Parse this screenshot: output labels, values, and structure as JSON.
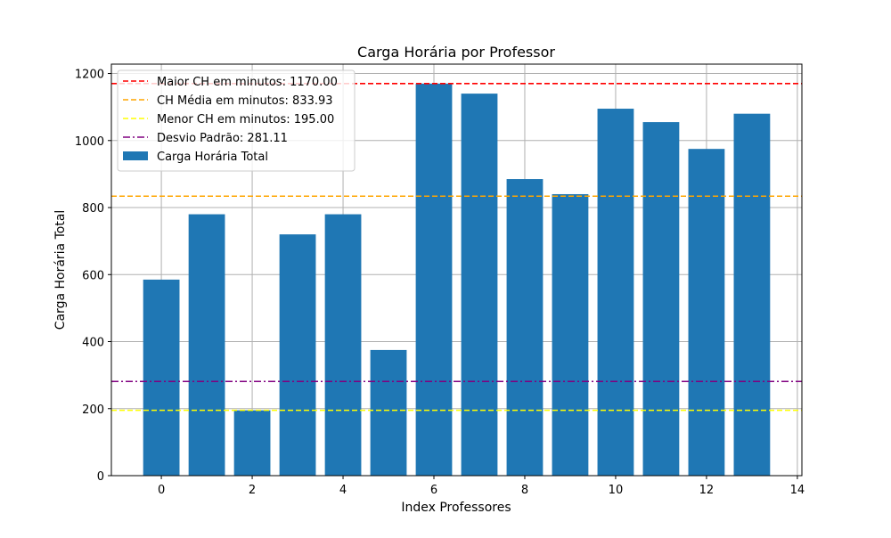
{
  "chart_data": {
    "type": "bar",
    "title": "Carga Horária por Professor",
    "xlabel": "Index Professores",
    "ylabel": "Carga Horária Total",
    "x": [
      0,
      1,
      2,
      3,
      4,
      5,
      6,
      7,
      8,
      9,
      10,
      11,
      12,
      13
    ],
    "values": [
      585,
      780,
      195,
      720,
      780,
      375,
      1170,
      1140,
      885,
      840,
      1095,
      1055,
      975,
      1080
    ],
    "bar_color": "#1f77b4",
    "xlim": [
      -1.1,
      14.1
    ],
    "ylim": [
      0,
      1228
    ],
    "xticks": [
      0,
      2,
      4,
      6,
      8,
      10,
      12,
      14
    ],
    "yticks": [
      0,
      200,
      400,
      600,
      800,
      1000,
      1200
    ],
    "grid": true,
    "legend_position": "upper-left",
    "reference_lines": [
      {
        "label": "Maior CH em minutos: 1170.00",
        "value": 1170.0,
        "color": "#ff0000",
        "style": "dashed"
      },
      {
        "label": "CH Média em minutos: 833.93",
        "value": 833.93,
        "color": "#ffa500",
        "style": "dashed"
      },
      {
        "label": "Menor CH em minutos: 195.00",
        "value": 195.0,
        "color": "#ffff00",
        "style": "dashed"
      },
      {
        "label": "Desvio Padrão: 281.11",
        "value": 281.11,
        "color": "#800080",
        "style": "dashdot"
      }
    ],
    "bar_series_label": "Carga Horária Total"
  }
}
